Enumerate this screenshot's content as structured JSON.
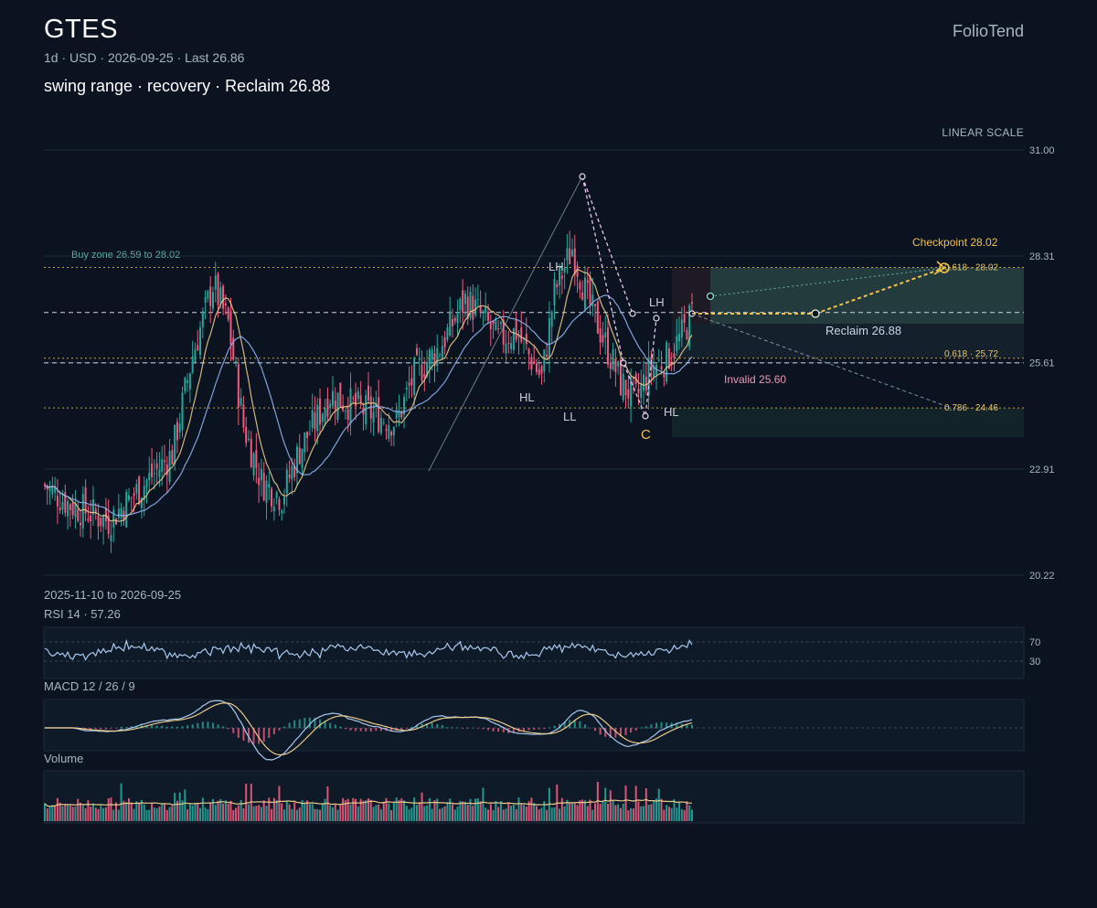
{
  "header": {
    "ticker": "GTES",
    "brand": "FolioTend",
    "meta": "1d · USD · 2026-09-25 · Last 26.86",
    "headline": "swing range · recovery · Reclaim 26.88",
    "scale_label": "LINEAR SCALE",
    "date_range": "2025-11-10 to 2026-09-25"
  },
  "colors": {
    "background": "#0b1220",
    "up": "#26a69a",
    "down": "#ef5b7e",
    "ma_fast": "#e9c98a",
    "ma_slow": "#8fb3f0",
    "accent": "#f2c14e",
    "zone": "#5aa89a"
  },
  "chart_data": {
    "type": "candlestick",
    "y_axis": {
      "ticks": [
        31.0,
        28.31,
        25.61,
        22.91,
        20.22
      ],
      "ylim": [
        20.22,
        31.0
      ],
      "scale": "linear"
    },
    "x_range": [
      "2025-11-10",
      "2026-09-25"
    ],
    "last": 26.86,
    "series": [
      {
        "name": "",
        "kind": "ohlc",
        "points": 223
      },
      {
        "name": "",
        "kind": "moving-average-fast"
      },
      {
        "name": "",
        "kind": "moving-average-slow"
      }
    ],
    "levels": [
      {
        "label": "Reclaim 26.88",
        "value": 26.88,
        "style": "dashed"
      },
      {
        "label": "Invalid 25.60",
        "value": 25.6,
        "style": "dashed"
      },
      {
        "label": "0.618 · 28.02",
        "value": 28.02,
        "style": "dotted"
      },
      {
        "label": "0.618 · 25.72",
        "value": 25.72,
        "style": "dotted"
      },
      {
        "label": "0.786 · 24.46",
        "value": 24.46,
        "style": "dotted"
      }
    ],
    "buy_zone": {
      "label": "Buy zone 26.59 to 28.02",
      "low": 26.59,
      "high": 28.02
    },
    "checkpoint": {
      "label": "Checkpoint 28.02",
      "value": 28.02
    },
    "swing_labels": [
      "LH",
      "HL",
      "LL",
      "LH",
      "HL",
      "C"
    ]
  },
  "indicators": {
    "rsi": {
      "label": "RSI 14 · 57.26",
      "levels": [
        "70",
        "30"
      ],
      "value": 57.26
    },
    "macd": {
      "label": "MACD 12 / 26 / 9"
    },
    "volume": {
      "label": "Volume"
    }
  }
}
